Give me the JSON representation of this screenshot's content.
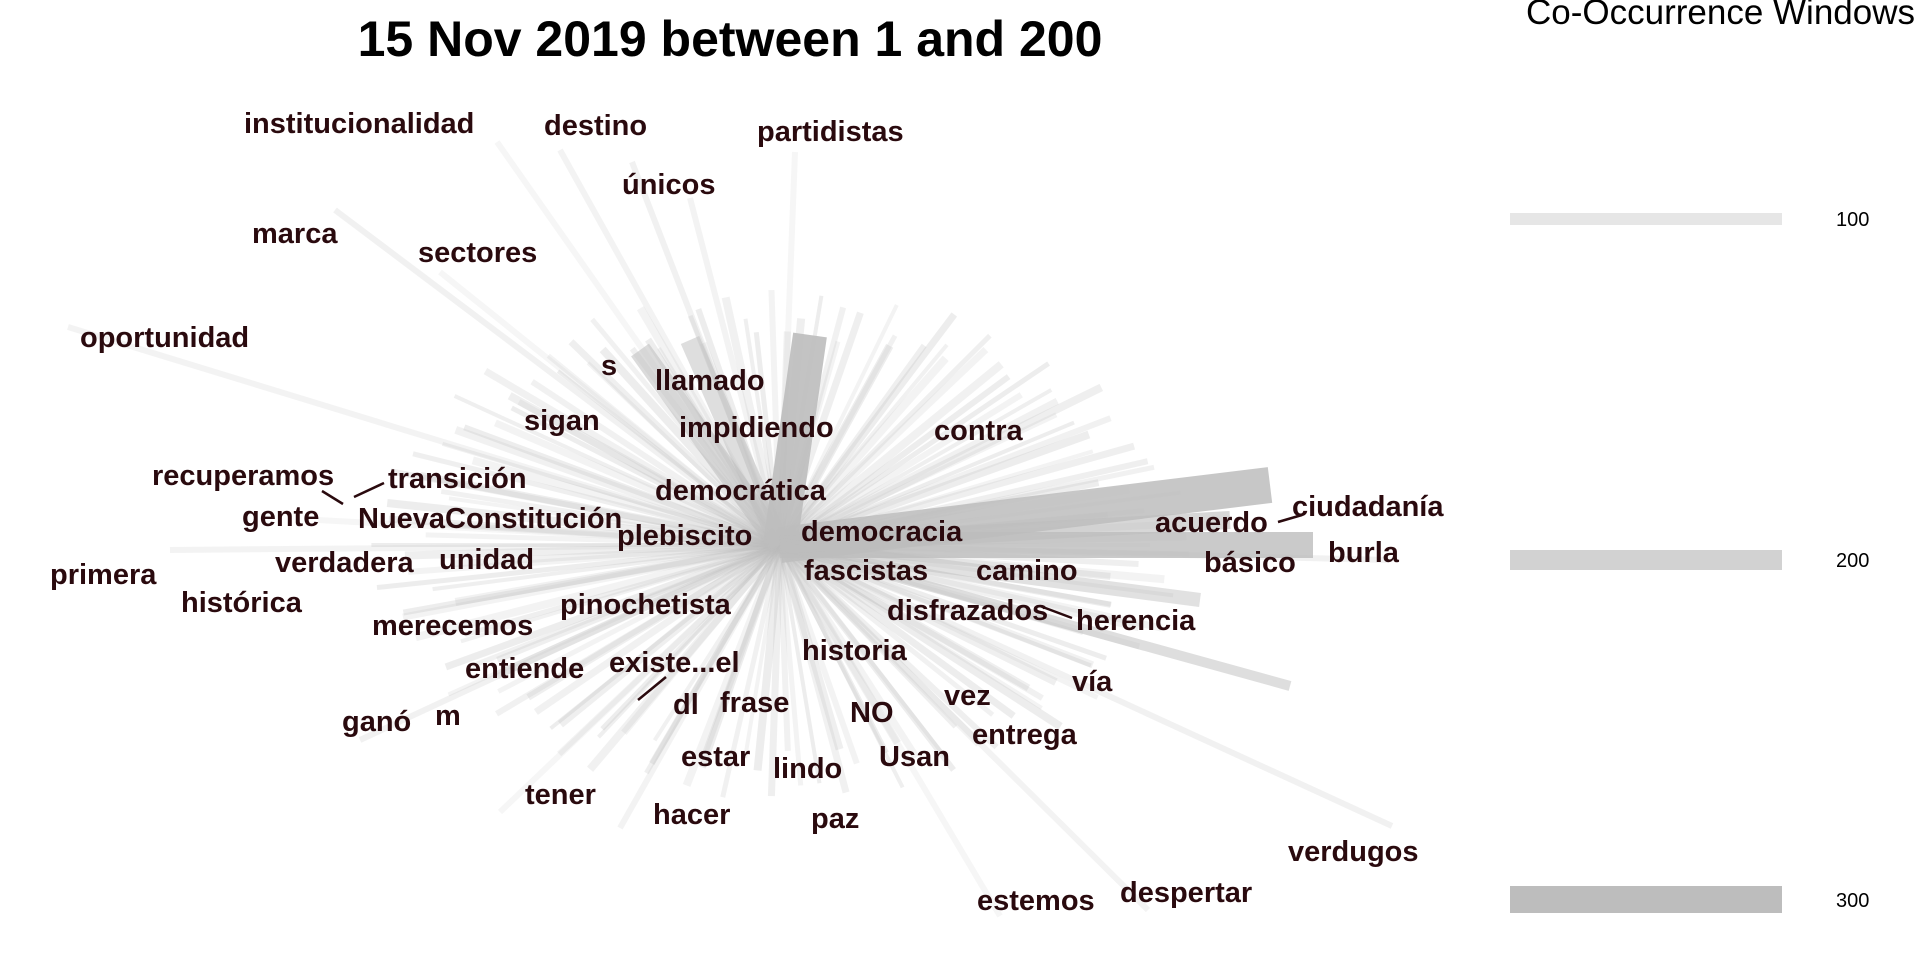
{
  "title": "15 Nov 2019 between 1 and 200",
  "legend": {
    "title": "Co-Occurrence Windows",
    "items": [
      {
        "label": "100",
        "color": "#e6e6e6"
      },
      {
        "label": "200",
        "color": "#d2d2d2"
      },
      {
        "label": "300",
        "color": "#bdbdbd"
      }
    ]
  },
  "words": [
    "institucionalidad",
    "destino",
    "partidistas",
    "únicos",
    "marca",
    "sectores",
    "oportunidad",
    "s",
    "llamado",
    "sigan",
    "impidiendo",
    "contra",
    "recuperamos",
    "transición",
    "democrática",
    "ciudadanía",
    "gente",
    "NuevaConstitución",
    "acuerdo",
    "plebiscito",
    "democracia",
    "burla",
    "primera",
    "verdadera",
    "unidad",
    "básico",
    "fascistas",
    "camino",
    "histórica",
    "pinochetista",
    "disfrazados",
    "herencia",
    "merecemos",
    "historia",
    "entiende",
    "existe...el",
    "vía",
    "ganó",
    "m",
    "dl",
    "frase",
    "NO",
    "vez",
    "entrega",
    "estar",
    "lindo",
    "Usan",
    "tener",
    "hacer",
    "paz",
    "verdugos",
    "despertar",
    "estemos"
  ],
  "ink_color": "#2a0a0e",
  "edge_color": "#bdbdbd"
}
